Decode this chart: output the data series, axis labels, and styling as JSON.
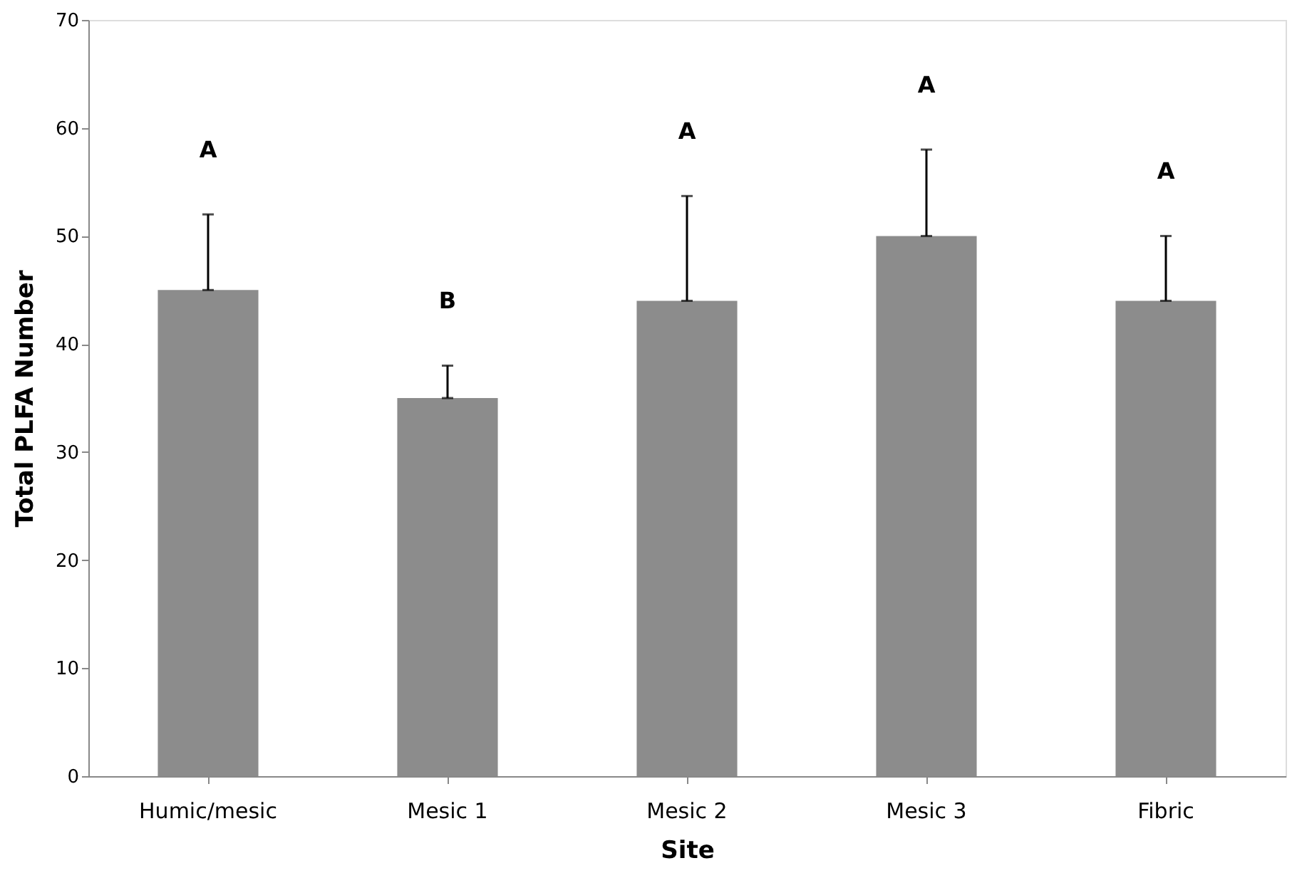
{
  "chart_data": {
    "type": "bar",
    "xlabel": "Site",
    "ylabel": "Total PLFA Number",
    "categories": [
      "Humic/mesic",
      "Mesic 1",
      "Mesic 2",
      "Mesic 3",
      "Fibric"
    ],
    "values": [
      45,
      35,
      44,
      50,
      44
    ],
    "errors": [
      [
        45,
        52
      ],
      [
        35,
        38
      ],
      [
        44,
        53.7
      ],
      [
        50,
        58
      ],
      [
        44,
        50
      ]
    ],
    "color": "#8c8c8c",
    "ylim": [
      0,
      70
    ],
    "yticks": [
      0,
      10,
      20,
      30,
      40,
      50,
      60,
      70
    ],
    "grid": false,
    "annotations": [
      "A",
      "B",
      "A",
      "A",
      "A"
    ]
  }
}
